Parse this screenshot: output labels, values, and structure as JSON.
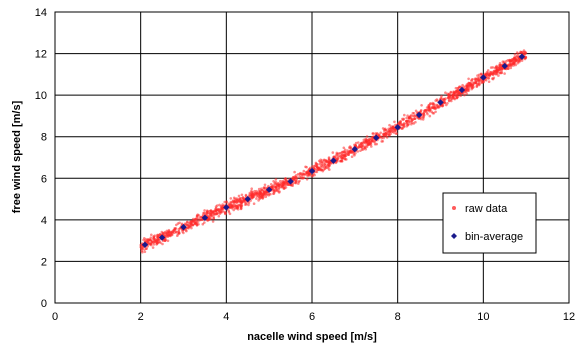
{
  "chart_data": {
    "type": "scatter",
    "title": "",
    "xlabel": "nacelle wind speed [m/s]",
    "ylabel": "free wind speed [m/s]",
    "xlim": [
      0,
      12
    ],
    "ylim": [
      0,
      14
    ],
    "xticks": [
      "0",
      "2",
      "4",
      "6",
      "8",
      "10",
      "12"
    ],
    "yticks": [
      "0",
      "2",
      "4",
      "6",
      "8",
      "10",
      "12",
      "14"
    ],
    "grid": true,
    "legend_position": "right",
    "series": [
      {
        "name": "raw data",
        "marker": "point",
        "color": "#ff2a2a",
        "description": "dense cloud along the bin-average curve",
        "x_range": [
          2.0,
          11.0
        ],
        "spread": 0.35
      },
      {
        "name": "bin-average",
        "marker": "diamond",
        "color": "#1a1a8c",
        "x": [
          2.1,
          2.5,
          3.0,
          3.5,
          4.0,
          4.5,
          5.0,
          5.5,
          6.0,
          6.5,
          7.0,
          7.5,
          8.0,
          8.5,
          9.0,
          9.5,
          10.0,
          10.5,
          10.9
        ],
        "y": [
          2.8,
          3.15,
          3.65,
          4.1,
          4.6,
          5.0,
          5.45,
          5.85,
          6.35,
          6.85,
          7.4,
          7.95,
          8.45,
          9.05,
          9.65,
          10.25,
          10.85,
          11.4,
          11.85
        ]
      }
    ]
  }
}
